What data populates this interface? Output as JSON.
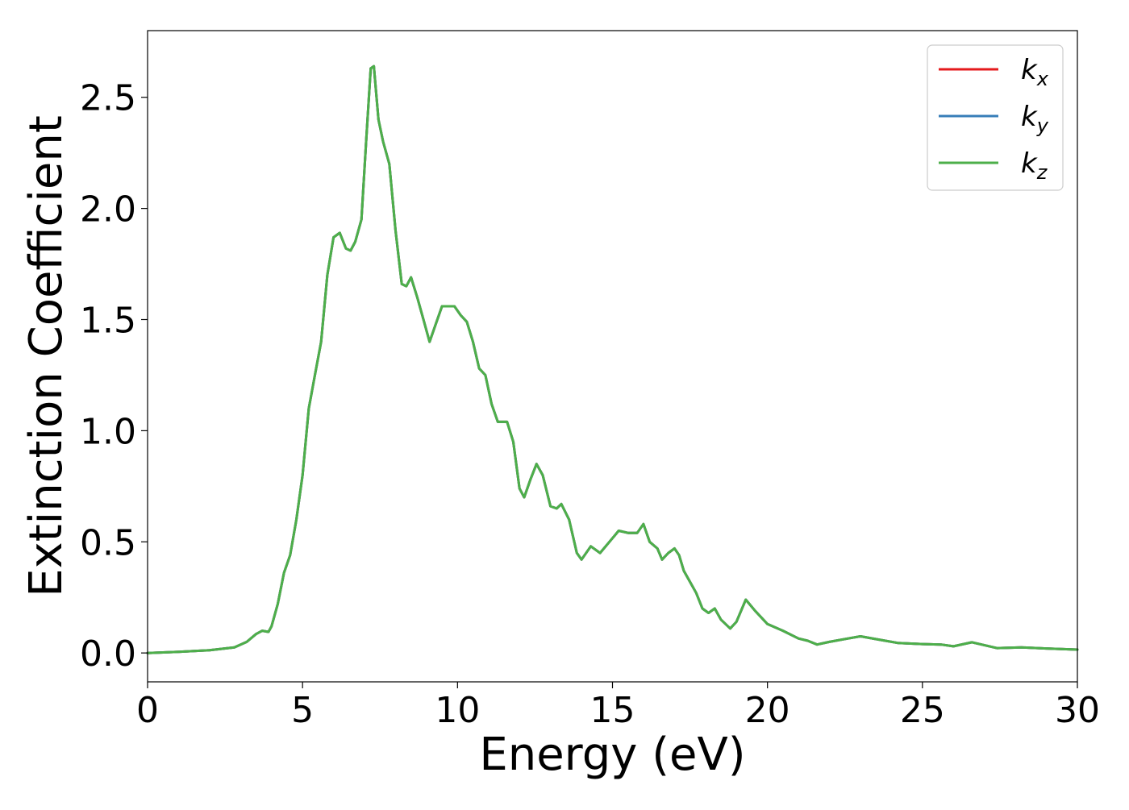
{
  "chart_data": {
    "type": "line",
    "title": "",
    "xlabel": "Energy (eV)",
    "ylabel": "Extinction Coefficient",
    "xlim": [
      0,
      30
    ],
    "ylim": [
      -0.13,
      2.8
    ],
    "xticks": [
      0,
      5,
      10,
      15,
      20,
      25,
      30
    ],
    "xtick_labels": [
      "0",
      "5",
      "10",
      "15",
      "20",
      "25",
      "30"
    ],
    "yticks": [
      0.0,
      0.5,
      1.0,
      1.5,
      2.0,
      2.5
    ],
    "ytick_labels": [
      "0.0",
      "0.5",
      "1.0",
      "1.5",
      "2.0",
      "2.5"
    ],
    "grid": false,
    "legend_position": "top-right",
    "series": [
      {
        "name": "k_x",
        "label_main": "k",
        "label_sub": "x",
        "color": "#e41a1c",
        "x": [
          0,
          1,
          2,
          2.8,
          3.2,
          3.5,
          3.7,
          3.9,
          4.0,
          4.2,
          4.4,
          4.6,
          4.8,
          5.0,
          5.2,
          5.4,
          5.6,
          5.8,
          6.0,
          6.2,
          6.4,
          6.55,
          6.7,
          6.9,
          7.05,
          7.2,
          7.3,
          7.45,
          7.6,
          7.8,
          8.0,
          8.2,
          8.35,
          8.5,
          8.7,
          8.9,
          9.1,
          9.3,
          9.5,
          9.9,
          10.1,
          10.3,
          10.5,
          10.7,
          10.9,
          11.1,
          11.3,
          11.6,
          11.8,
          12.0,
          12.15,
          12.35,
          12.55,
          12.75,
          13.0,
          13.2,
          13.35,
          13.6,
          13.85,
          14.0,
          14.3,
          14.6,
          14.9,
          15.2,
          15.5,
          15.8,
          16.0,
          16.2,
          16.45,
          16.6,
          16.8,
          17.0,
          17.15,
          17.3,
          17.5,
          17.7,
          17.9,
          18.1,
          18.3,
          18.5,
          18.8,
          19.0,
          19.3,
          19.6,
          20.0,
          20.5,
          21.0,
          21.3,
          21.6,
          22.0,
          22.6,
          23.0,
          23.6,
          24.2,
          25.0,
          25.6,
          26.0,
          26.6,
          27.4,
          28.2,
          29.0,
          30.0
        ],
        "values": [
          0.0,
          0.005,
          0.012,
          0.025,
          0.05,
          0.085,
          0.1,
          0.095,
          0.12,
          0.22,
          0.36,
          0.44,
          0.6,
          0.8,
          1.1,
          1.25,
          1.4,
          1.7,
          1.87,
          1.89,
          1.82,
          1.81,
          1.85,
          1.95,
          2.3,
          2.63,
          2.64,
          2.4,
          2.3,
          2.2,
          1.9,
          1.66,
          1.65,
          1.69,
          1.6,
          1.5,
          1.4,
          1.48,
          1.56,
          1.56,
          1.52,
          1.49,
          1.4,
          1.28,
          1.25,
          1.12,
          1.04,
          1.04,
          0.95,
          0.74,
          0.7,
          0.78,
          0.85,
          0.8,
          0.66,
          0.65,
          0.67,
          0.6,
          0.45,
          0.42,
          0.48,
          0.45,
          0.5,
          0.55,
          0.54,
          0.54,
          0.58,
          0.5,
          0.47,
          0.42,
          0.45,
          0.47,
          0.44,
          0.37,
          0.32,
          0.27,
          0.2,
          0.18,
          0.2,
          0.15,
          0.11,
          0.14,
          0.24,
          0.19,
          0.13,
          0.1,
          0.065,
          0.055,
          0.038,
          0.05,
          0.065,
          0.075,
          0.06,
          0.045,
          0.04,
          0.038,
          0.03,
          0.048,
          0.022,
          0.025,
          0.02,
          0.015
        ]
      },
      {
        "name": "k_y",
        "label_main": "k",
        "label_sub": "y",
        "color": "#377eb8",
        "x": [
          0,
          1,
          2,
          2.8,
          3.2,
          3.5,
          3.7,
          3.9,
          4.0,
          4.2,
          4.4,
          4.6,
          4.8,
          5.0,
          5.2,
          5.4,
          5.6,
          5.8,
          6.0,
          6.2,
          6.4,
          6.55,
          6.7,
          6.9,
          7.05,
          7.2,
          7.3,
          7.45,
          7.6,
          7.8,
          8.0,
          8.2,
          8.35,
          8.5,
          8.7,
          8.9,
          9.1,
          9.3,
          9.5,
          9.9,
          10.1,
          10.3,
          10.5,
          10.7,
          10.9,
          11.1,
          11.3,
          11.6,
          11.8,
          12.0,
          12.15,
          12.35,
          12.55,
          12.75,
          13.0,
          13.2,
          13.35,
          13.6,
          13.85,
          14.0,
          14.3,
          14.6,
          14.9,
          15.2,
          15.5,
          15.8,
          16.0,
          16.2,
          16.45,
          16.6,
          16.8,
          17.0,
          17.15,
          17.3,
          17.5,
          17.7,
          17.9,
          18.1,
          18.3,
          18.5,
          18.8,
          19.0,
          19.3,
          19.6,
          20.0,
          20.5,
          21.0,
          21.3,
          21.6,
          22.0,
          22.6,
          23.0,
          23.6,
          24.2,
          25.0,
          25.6,
          26.0,
          26.6,
          27.4,
          28.2,
          29.0,
          30.0
        ],
        "values": [
          0.0,
          0.005,
          0.012,
          0.025,
          0.05,
          0.085,
          0.1,
          0.095,
          0.12,
          0.22,
          0.36,
          0.44,
          0.6,
          0.8,
          1.1,
          1.25,
          1.4,
          1.7,
          1.87,
          1.89,
          1.82,
          1.81,
          1.85,
          1.95,
          2.3,
          2.63,
          2.64,
          2.4,
          2.3,
          2.2,
          1.9,
          1.66,
          1.65,
          1.69,
          1.6,
          1.5,
          1.4,
          1.48,
          1.56,
          1.56,
          1.52,
          1.49,
          1.4,
          1.28,
          1.25,
          1.12,
          1.04,
          1.04,
          0.95,
          0.74,
          0.7,
          0.78,
          0.85,
          0.8,
          0.66,
          0.65,
          0.67,
          0.6,
          0.45,
          0.42,
          0.48,
          0.45,
          0.5,
          0.55,
          0.54,
          0.54,
          0.58,
          0.5,
          0.47,
          0.42,
          0.45,
          0.47,
          0.44,
          0.37,
          0.32,
          0.27,
          0.2,
          0.18,
          0.2,
          0.15,
          0.11,
          0.14,
          0.24,
          0.19,
          0.13,
          0.1,
          0.065,
          0.055,
          0.038,
          0.05,
          0.065,
          0.075,
          0.06,
          0.045,
          0.04,
          0.038,
          0.03,
          0.048,
          0.022,
          0.025,
          0.02,
          0.015
        ]
      },
      {
        "name": "k_z",
        "label_main": "k",
        "label_sub": "z",
        "color": "#4daf4a",
        "x": [
          0,
          1,
          2,
          2.8,
          3.2,
          3.5,
          3.7,
          3.9,
          4.0,
          4.2,
          4.4,
          4.6,
          4.8,
          5.0,
          5.2,
          5.4,
          5.6,
          5.8,
          6.0,
          6.2,
          6.4,
          6.55,
          6.7,
          6.9,
          7.05,
          7.2,
          7.3,
          7.45,
          7.6,
          7.8,
          8.0,
          8.2,
          8.35,
          8.5,
          8.7,
          8.9,
          9.1,
          9.3,
          9.5,
          9.9,
          10.1,
          10.3,
          10.5,
          10.7,
          10.9,
          11.1,
          11.3,
          11.6,
          11.8,
          12.0,
          12.15,
          12.35,
          12.55,
          12.75,
          13.0,
          13.2,
          13.35,
          13.6,
          13.85,
          14.0,
          14.3,
          14.6,
          14.9,
          15.2,
          15.5,
          15.8,
          16.0,
          16.2,
          16.45,
          16.6,
          16.8,
          17.0,
          17.15,
          17.3,
          17.5,
          17.7,
          17.9,
          18.1,
          18.3,
          18.5,
          18.8,
          19.0,
          19.3,
          19.6,
          20.0,
          20.5,
          21.0,
          21.3,
          21.6,
          22.0,
          22.6,
          23.0,
          23.6,
          24.2,
          25.0,
          25.6,
          26.0,
          26.6,
          27.4,
          28.2,
          29.0,
          30.0
        ],
        "values": [
          0.0,
          0.005,
          0.012,
          0.025,
          0.05,
          0.085,
          0.1,
          0.095,
          0.12,
          0.22,
          0.36,
          0.44,
          0.6,
          0.8,
          1.1,
          1.25,
          1.4,
          1.7,
          1.87,
          1.89,
          1.82,
          1.81,
          1.85,
          1.95,
          2.3,
          2.63,
          2.64,
          2.4,
          2.3,
          2.2,
          1.9,
          1.66,
          1.65,
          1.69,
          1.6,
          1.5,
          1.4,
          1.48,
          1.56,
          1.56,
          1.52,
          1.49,
          1.4,
          1.28,
          1.25,
          1.12,
          1.04,
          1.04,
          0.95,
          0.74,
          0.7,
          0.78,
          0.85,
          0.8,
          0.66,
          0.65,
          0.67,
          0.6,
          0.45,
          0.42,
          0.48,
          0.45,
          0.5,
          0.55,
          0.54,
          0.54,
          0.58,
          0.5,
          0.47,
          0.42,
          0.45,
          0.47,
          0.44,
          0.37,
          0.32,
          0.27,
          0.2,
          0.18,
          0.2,
          0.15,
          0.11,
          0.14,
          0.24,
          0.19,
          0.13,
          0.1,
          0.065,
          0.055,
          0.038,
          0.05,
          0.065,
          0.075,
          0.06,
          0.045,
          0.04,
          0.038,
          0.03,
          0.048,
          0.022,
          0.025,
          0.02,
          0.015
        ]
      }
    ]
  }
}
